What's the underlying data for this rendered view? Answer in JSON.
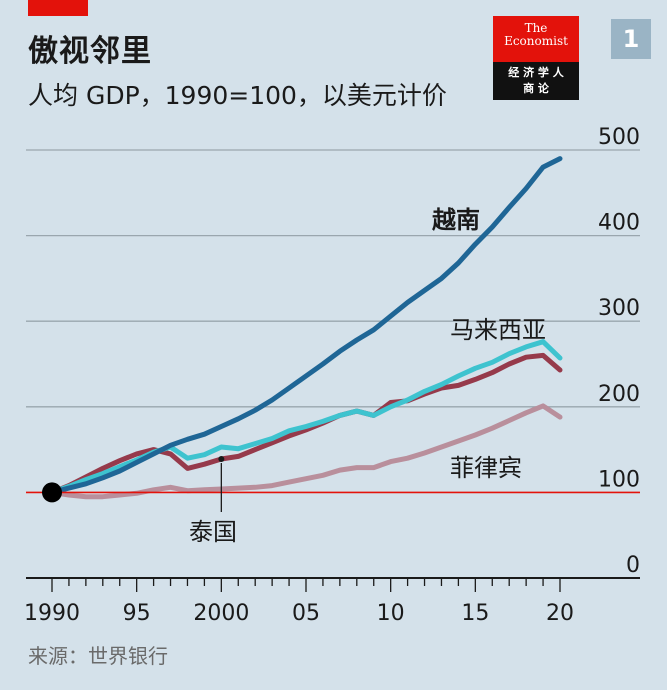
{
  "header": {
    "title": "傲视邻里",
    "subtitle": "人均 GDP，1990=100，以美元计价"
  },
  "logo": {
    "line1": "The",
    "line2": "Economist",
    "line3": "经 济 学 人",
    "line4": "商 论"
  },
  "badge": "1",
  "source": "来源：世界银行",
  "colors": {
    "background": "#d4e1ea",
    "vietnam": "#1f6696",
    "malaysia": "#3ec3cf",
    "thailand": "#963a4b",
    "philippines": "#b98f9c",
    "baseline": "#e3120b"
  },
  "chart_data": {
    "type": "line",
    "x": [
      1990,
      1991,
      1992,
      1993,
      1994,
      1995,
      1996,
      1997,
      1998,
      1999,
      2000,
      2001,
      2002,
      2003,
      2004,
      2005,
      2006,
      2007,
      2008,
      2009,
      2010,
      2011,
      2012,
      2013,
      2014,
      2015,
      2016,
      2017,
      2018,
      2019,
      2020
    ],
    "x_tick_labels": [
      "1990",
      "95",
      "2000",
      "05",
      "10",
      "15",
      "20"
    ],
    "x_tick_values": [
      1990,
      1995,
      2000,
      2005,
      2010,
      2015,
      2020
    ],
    "ylim": [
      0,
      500
    ],
    "y_ticks": [
      0,
      100,
      200,
      300,
      400,
      500
    ],
    "baseline": 100,
    "series": [
      {
        "name": "越南",
        "color": "#1f6696",
        "values": [
          100,
          105,
          110,
          117,
          125,
          135,
          145,
          155,
          162,
          168,
          177,
          186,
          196,
          208,
          222,
          236,
          250,
          265,
          278,
          290,
          306,
          322,
          336,
          350,
          368,
          390,
          410,
          433,
          455,
          480,
          490
        ]
      },
      {
        "name": "马来西亚",
        "color": "#3ec3cf",
        "values": [
          100,
          107,
          115,
          122,
          130,
          138,
          147,
          153,
          140,
          144,
          153,
          151,
          157,
          163,
          172,
          177,
          183,
          190,
          195,
          190,
          200,
          208,
          218,
          226,
          236,
          245,
          252,
          262,
          270,
          276,
          257
        ]
      },
      {
        "name": "泰国",
        "color": "#963a4b",
        "values": [
          100,
          108,
          118,
          128,
          137,
          145,
          150,
          145,
          128,
          133,
          139,
          142,
          150,
          158,
          166,
          173,
          181,
          190,
          195,
          190,
          205,
          207,
          215,
          222,
          225,
          232,
          240,
          250,
          258,
          260,
          243
        ]
      },
      {
        "name": "菲律宾",
        "color": "#b98f9c",
        "values": [
          100,
          97,
          95,
          95,
          97,
          99,
          103,
          106,
          102,
          103,
          104,
          105,
          106,
          108,
          112,
          116,
          120,
          126,
          129,
          129,
          136,
          140,
          146,
          153,
          160,
          167,
          175,
          184,
          193,
          201,
          188
        ]
      }
    ]
  }
}
